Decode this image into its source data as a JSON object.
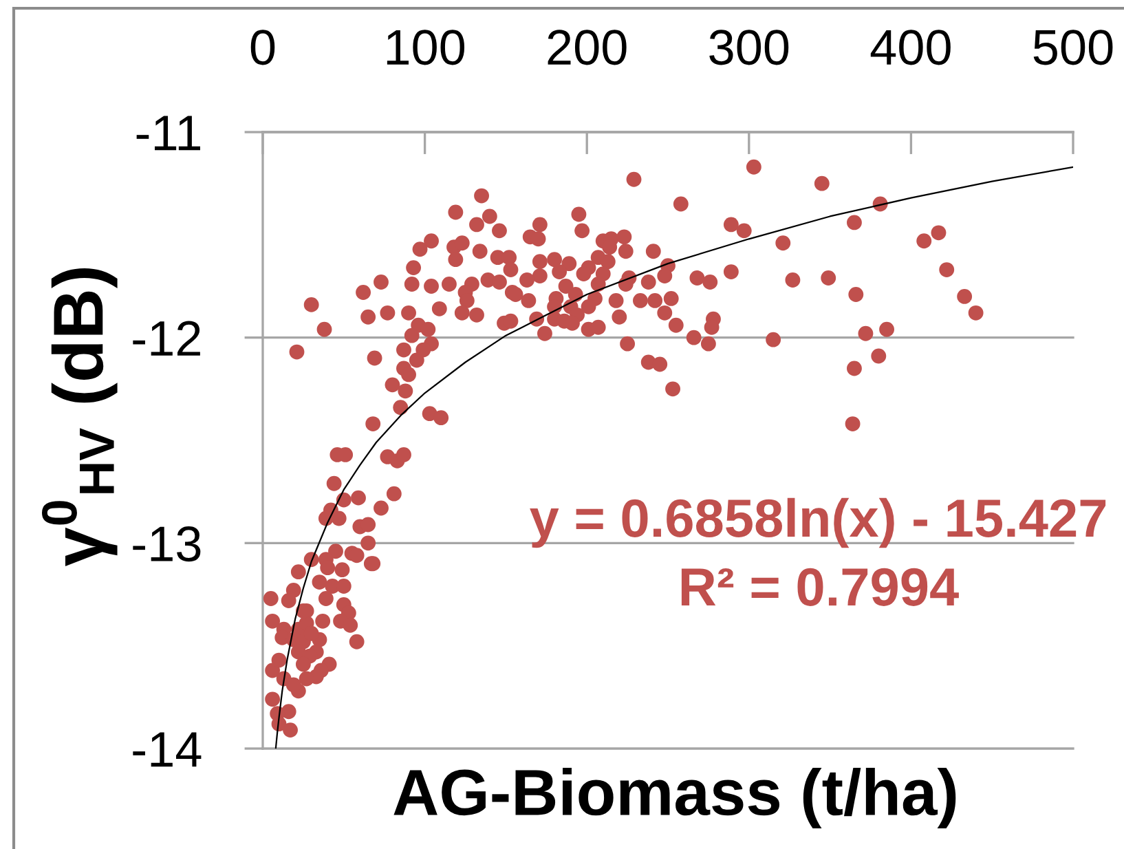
{
  "chart_data": {
    "type": "scatter",
    "xlabel": "AG-Biomass (t/ha)",
    "ylabel": "γ$^{0}$$_{HV}$ (dB)",
    "xlim": [
      0,
      500
    ],
    "ylim": [
      -14,
      -11
    ],
    "xticks": [
      0,
      100,
      200,
      300,
      400,
      500
    ],
    "yticks": [
      -14,
      -13,
      -12,
      -11
    ],
    "grid": "y",
    "marker": "circle",
    "annotations": [
      "y = 0.6858ln(x) - 15.427",
      "R² = 0.7994"
    ],
    "series": [
      {
        "color": "#c0504d",
        "x": [
          135,
          119,
          140,
          132,
          146,
          104,
          97,
          118,
          123,
          119,
          134,
          145,
          152,
          93,
          153,
          73,
          62,
          92,
          104,
          115,
          129,
          139,
          146,
          125,
          154,
          30,
          65,
          77,
          90,
          109,
          126,
          123,
          132,
          149,
          38,
          96,
          102,
          92,
          21,
          69,
          87,
          104,
          99,
          95,
          87,
          90,
          80,
          88,
          85,
          103,
          110,
          68,
          46,
          51,
          77,
          83,
          87,
          44,
          81,
          59,
          50,
          73,
          42,
          47,
          39,
          60,
          65,
          65,
          45,
          55,
          58,
          68,
          67,
          30,
          39,
          40,
          22,
          49,
          35,
          43,
          50,
          19,
          39,
          5,
          16,
          50,
          53,
          27,
          6,
          37,
          48,
          54,
          13,
          22,
          27,
          12,
          19,
          25,
          58,
          35,
          33,
          22,
          29,
          41,
          36,
          33,
          6,
          10,
          13,
          27,
          22,
          19,
          6,
          16,
          9,
          10,
          17,
          25,
          30,
          25,
          303,
          229,
          258,
          195,
          197,
          171,
          165,
          170,
          289,
          297,
          321,
          210,
          215,
          223,
          214,
          224,
          241,
          207,
          213,
          180,
          189,
          171,
          171,
          183,
          201,
          198,
          210,
          250,
          248,
          226,
          224,
          238,
          268,
          276,
          289,
          327,
          163,
          156,
          164,
          187,
          193,
          207,
          205,
          181,
          180,
          218,
          233,
          242,
          252,
          248,
          190,
          194,
          201,
          169,
          180,
          186,
          191,
          153,
          220,
          174,
          201,
          207,
          255,
          278,
          277,
          266,
          275,
          315,
          225,
          238,
          245,
          253,
          345,
          381,
          365,
          408,
          417,
          422,
          349,
          366,
          433,
          440,
          372,
          385,
          380,
          365,
          364
        ],
        "values": [
          -11.31,
          -11.39,
          -11.41,
          -11.45,
          -11.48,
          -11.53,
          -11.57,
          -11.56,
          -11.54,
          -11.62,
          -11.58,
          -11.61,
          -11.61,
          -11.66,
          -11.67,
          -11.73,
          -11.78,
          -11.74,
          -11.75,
          -11.74,
          -11.74,
          -11.72,
          -11.73,
          -11.78,
          -11.78,
          -11.84,
          -11.9,
          -11.88,
          -11.88,
          -11.86,
          -11.82,
          -11.88,
          -11.89,
          -11.93,
          -11.96,
          -11.94,
          -11.96,
          -11.99,
          -12.07,
          -12.1,
          -12.06,
          -12.03,
          -12.06,
          -12.11,
          -12.15,
          -12.18,
          -12.23,
          -12.26,
          -12.34,
          -12.37,
          -12.39,
          -12.42,
          -12.57,
          -12.57,
          -12.58,
          -12.6,
          -12.57,
          -12.71,
          -12.76,
          -12.78,
          -12.79,
          -12.83,
          -12.84,
          -12.88,
          -12.88,
          -12.92,
          -12.91,
          -13.0,
          -13.04,
          -13.05,
          -13.06,
          -13.1,
          -13.1,
          -13.08,
          -13.08,
          -13.12,
          -13.14,
          -13.13,
          -13.19,
          -13.21,
          -13.21,
          -13.23,
          -13.27,
          -13.27,
          -13.28,
          -13.3,
          -13.34,
          -13.33,
          -13.38,
          -13.38,
          -13.38,
          -13.4,
          -13.42,
          -13.42,
          -13.39,
          -13.46,
          -13.47,
          -13.48,
          -13.48,
          -13.47,
          -13.53,
          -13.53,
          -13.55,
          -13.59,
          -13.62,
          -13.65,
          -13.62,
          -13.57,
          -13.66,
          -13.66,
          -13.72,
          -13.69,
          -13.76,
          -13.82,
          -13.83,
          -13.88,
          -13.91,
          -13.33,
          -13.44,
          -13.59,
          -11.17,
          -11.23,
          -11.35,
          -11.4,
          -11.48,
          -11.45,
          -11.51,
          -11.52,
          -11.45,
          -11.48,
          -11.54,
          -11.53,
          -11.52,
          -11.51,
          -11.56,
          -11.58,
          -11.58,
          -11.61,
          -11.63,
          -11.62,
          -11.64,
          -11.63,
          -11.7,
          -11.68,
          -11.66,
          -11.69,
          -11.69,
          -11.65,
          -11.7,
          -11.71,
          -11.74,
          -11.73,
          -11.71,
          -11.73,
          -11.68,
          -11.72,
          -11.72,
          -11.79,
          -11.82,
          -11.75,
          -11.79,
          -11.74,
          -11.81,
          -11.81,
          -11.85,
          -11.82,
          -11.82,
          -11.82,
          -11.81,
          -11.88,
          -11.85,
          -11.89,
          -11.85,
          -11.91,
          -11.91,
          -11.92,
          -11.93,
          -11.92,
          -11.9,
          -11.98,
          -11.96,
          -11.95,
          -11.94,
          -11.91,
          -11.95,
          -12.0,
          -12.03,
          -12.01,
          -12.03,
          -12.12,
          -12.13,
          -12.25,
          -11.25,
          -11.35,
          -11.44,
          -11.53,
          -11.49,
          -11.67,
          -11.71,
          -11.79,
          -11.8,
          -11.88,
          -11.98,
          -11.96,
          -12.09,
          -12.15,
          -12.42
        ]
      },
      {
        "type": "line",
        "color": "#000000",
        "marker": "none",
        "line_style": "solid",
        "x": [
          8,
          9,
          10,
          12,
          15,
          20,
          25,
          30,
          40,
          50,
          60,
          70,
          85,
          100,
          125,
          150,
          175,
          200,
          250,
          300,
          350,
          400,
          450,
          500
        ],
        "values": [
          -14.0,
          -13.92,
          -13.85,
          -13.72,
          -13.57,
          -13.37,
          -13.22,
          -13.09,
          -12.9,
          -12.74,
          -12.62,
          -12.51,
          -12.38,
          -12.27,
          -12.12,
          -11.99,
          -11.89,
          -11.79,
          -11.64,
          -11.52,
          -11.41,
          -11.32,
          -11.24,
          -11.17
        ]
      }
    ]
  }
}
